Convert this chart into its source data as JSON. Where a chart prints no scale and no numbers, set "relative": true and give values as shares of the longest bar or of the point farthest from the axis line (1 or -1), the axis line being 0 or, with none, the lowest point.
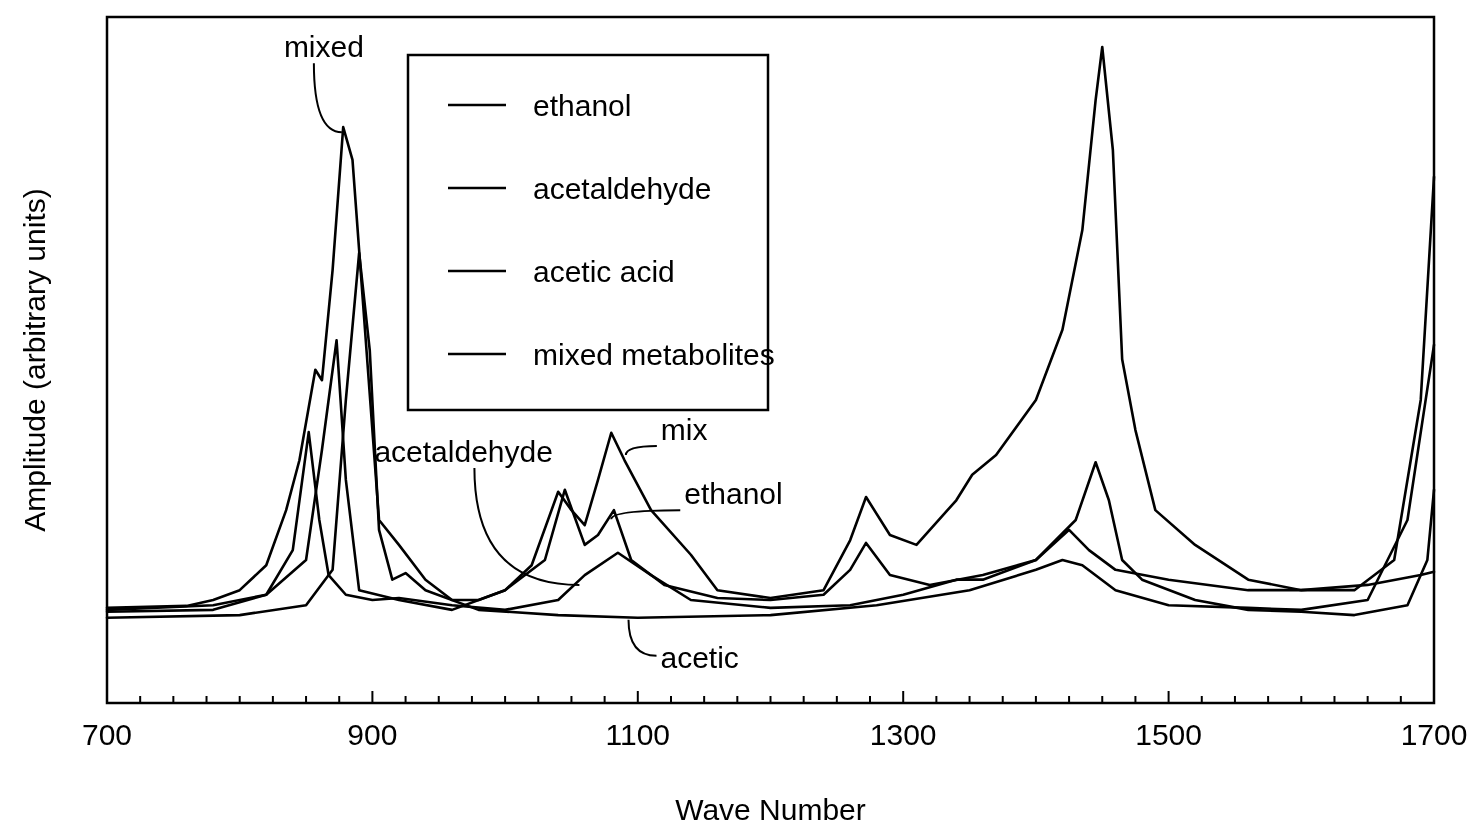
{
  "chart_data": {
    "type": "line",
    "relative": true,
    "xlabel": "Wave Number",
    "ylabel": "Amplitude (arbitrary units)",
    "xlim": [
      700,
      1700
    ],
    "xticks": [
      700,
      {
        "value": 725,
        "label": null
      },
      {
        "value": 750,
        "label": null
      },
      {
        "value": 775,
        "label": null
      },
      {
        "value": 800,
        "label": null
      },
      {
        "value": 825,
        "label": null
      },
      {
        "value": 850,
        "label": null
      },
      {
        "value": 875,
        "label": null
      },
      900,
      {
        "value": 925,
        "label": null
      },
      {
        "value": 950,
        "label": null
      },
      {
        "value": 975,
        "label": null
      },
      {
        "value": 1000,
        "label": null
      },
      {
        "value": 1025,
        "label": null
      },
      {
        "value": 1050,
        "label": null
      },
      {
        "value": 1075,
        "label": null
      },
      1100,
      {
        "value": 1125,
        "label": null
      },
      {
        "value": 1150,
        "label": null
      },
      {
        "value": 1175,
        "label": null
      },
      {
        "value": 1200,
        "label": null
      },
      {
        "value": 1225,
        "label": null
      },
      {
        "value": 1250,
        "label": null
      },
      {
        "value": 1275,
        "label": null
      },
      1300,
      {
        "value": 1325,
        "label": null
      },
      {
        "value": 1350,
        "label": null
      },
      {
        "value": 1375,
        "label": null
      },
      {
        "value": 1400,
        "label": null
      },
      {
        "value": 1425,
        "label": null
      },
      {
        "value": 1450,
        "label": null
      },
      {
        "value": 1475,
        "label": null
      },
      1500,
      {
        "value": 1525,
        "label": null
      },
      {
        "value": 1550,
        "label": null
      },
      {
        "value": 1575,
        "label": null
      },
      {
        "value": 1600,
        "label": null
      },
      {
        "value": 1625,
        "label": null
      },
      {
        "value": 1650,
        "label": null
      },
      {
        "value": 1675,
        "label": null
      },
      1700
    ],
    "legend": "top",
    "grid": false,
    "marker": "none",
    "line_style": "solid",
    "series": [
      {
        "name": "ethanol",
        "color": "#000000",
        "x": [
          700,
          780,
          820,
          850,
          862,
          873,
          880,
          890,
          920,
          960,
          1000,
          1030,
          1045,
          1060,
          1070,
          1082,
          1095,
          1120,
          1160,
          1200,
          1240,
          1260,
          1272,
          1290,
          1320,
          1360,
          1400,
          1430,
          1445,
          1455,
          1465,
          1480,
          1520,
          1560,
          1600,
          1640,
          1680,
          1695,
          1700
        ],
        "values": [
          0.142,
          0.149,
          0.165,
          0.218,
          0.386,
          0.553,
          0.34,
          0.172,
          0.157,
          0.142,
          0.172,
          0.218,
          0.325,
          0.241,
          0.256,
          0.294,
          0.218,
          0.18,
          0.16,
          0.157,
          0.165,
          0.203,
          0.244,
          0.195,
          0.18,
          0.195,
          0.218,
          0.279,
          0.367,
          0.309,
          0.218,
          0.188,
          0.157,
          0.142,
          0.139,
          0.134,
          0.149,
          0.218,
          0.325
        ]
      },
      {
        "name": "acetaldehyde",
        "color": "#000000",
        "x": [
          700,
          780,
          820,
          840,
          852,
          860,
          867,
          880,
          900,
          920,
          960,
          1000,
          1040,
          1060,
          1085,
          1110,
          1140,
          1200,
          1260,
          1300,
          1340,
          1360,
          1400,
          1425,
          1440,
          1460,
          1500,
          1560,
          1600,
          1650,
          1690,
          1700
        ],
        "values": [
          0.139,
          0.142,
          0.165,
          0.233,
          0.413,
          0.279,
          0.195,
          0.165,
          0.157,
          0.16,
          0.149,
          0.142,
          0.157,
          0.195,
          0.229,
          0.195,
          0.157,
          0.145,
          0.149,
          0.165,
          0.188,
          0.188,
          0.218,
          0.264,
          0.233,
          0.203,
          0.188,
          0.172,
          0.172,
          0.18,
          0.195,
          0.2
        ]
      },
      {
        "name": "acetic acid",
        "color": "#000000",
        "x": [
          700,
          800,
          850,
          870,
          880,
          890,
          898,
          905,
          915,
          925,
          940,
          980,
          1040,
          1100,
          1200,
          1280,
          1350,
          1400,
          1420,
          1435,
          1460,
          1500,
          1560,
          1600,
          1650,
          1680,
          1700
        ],
        "values": [
          0.13,
          0.134,
          0.149,
          0.203,
          0.462,
          0.686,
          0.538,
          0.264,
          0.188,
          0.198,
          0.172,
          0.142,
          0.134,
          0.13,
          0.134,
          0.149,
          0.172,
          0.203,
          0.218,
          0.21,
          0.172,
          0.149,
          0.145,
          0.142,
          0.157,
          0.279,
          0.546
        ]
      },
      {
        "name": "mixed metabolites",
        "color": "#000000",
        "x": [
          700,
          760,
          780,
          800,
          820,
          835,
          845,
          857,
          862,
          870,
          878,
          885,
          895,
          905,
          920,
          940,
          960,
          980,
          1000,
          1020,
          1040,
          1050,
          1060,
          1070,
          1080,
          1090,
          1110,
          1140,
          1160,
          1200,
          1240,
          1260,
          1272,
          1290,
          1310,
          1340,
          1352,
          1370,
          1400,
          1420,
          1435,
          1445,
          1450,
          1458,
          1465,
          1475,
          1490,
          1520,
          1560,
          1600,
          1640,
          1670,
          1690,
          1700
        ],
        "values": [
          0.145,
          0.148,
          0.157,
          0.172,
          0.21,
          0.294,
          0.37,
          0.508,
          0.492,
          0.66,
          0.878,
          0.828,
          0.553,
          0.279,
          0.241,
          0.188,
          0.157,
          0.157,
          0.172,
          0.21,
          0.322,
          0.294,
          0.271,
          0.34,
          0.412,
          0.37,
          0.294,
          0.226,
          0.172,
          0.16,
          0.172,
          0.248,
          0.314,
          0.256,
          0.241,
          0.309,
          0.348,
          0.378,
          0.462,
          0.569,
          0.721,
          0.919,
          1,
          0.843,
          0.524,
          0.416,
          0.294,
          0.241,
          0.188,
          0.172,
          0.172,
          0.218,
          0.462,
          0.802
        ]
      }
    ],
    "annotations": [
      {
        "text": "mixed",
        "x": 877,
        "y": 0.87
      },
      {
        "text": "acetaldehyde",
        "x": 1056,
        "y": 0.18
      },
      {
        "text": "mix",
        "x": 1091,
        "y": 0.378
      },
      {
        "text": "ethanol",
        "x": 1080,
        "y": 0.28
      },
      {
        "text": "acetic",
        "x": 1093,
        "y": 0.127
      }
    ]
  }
}
